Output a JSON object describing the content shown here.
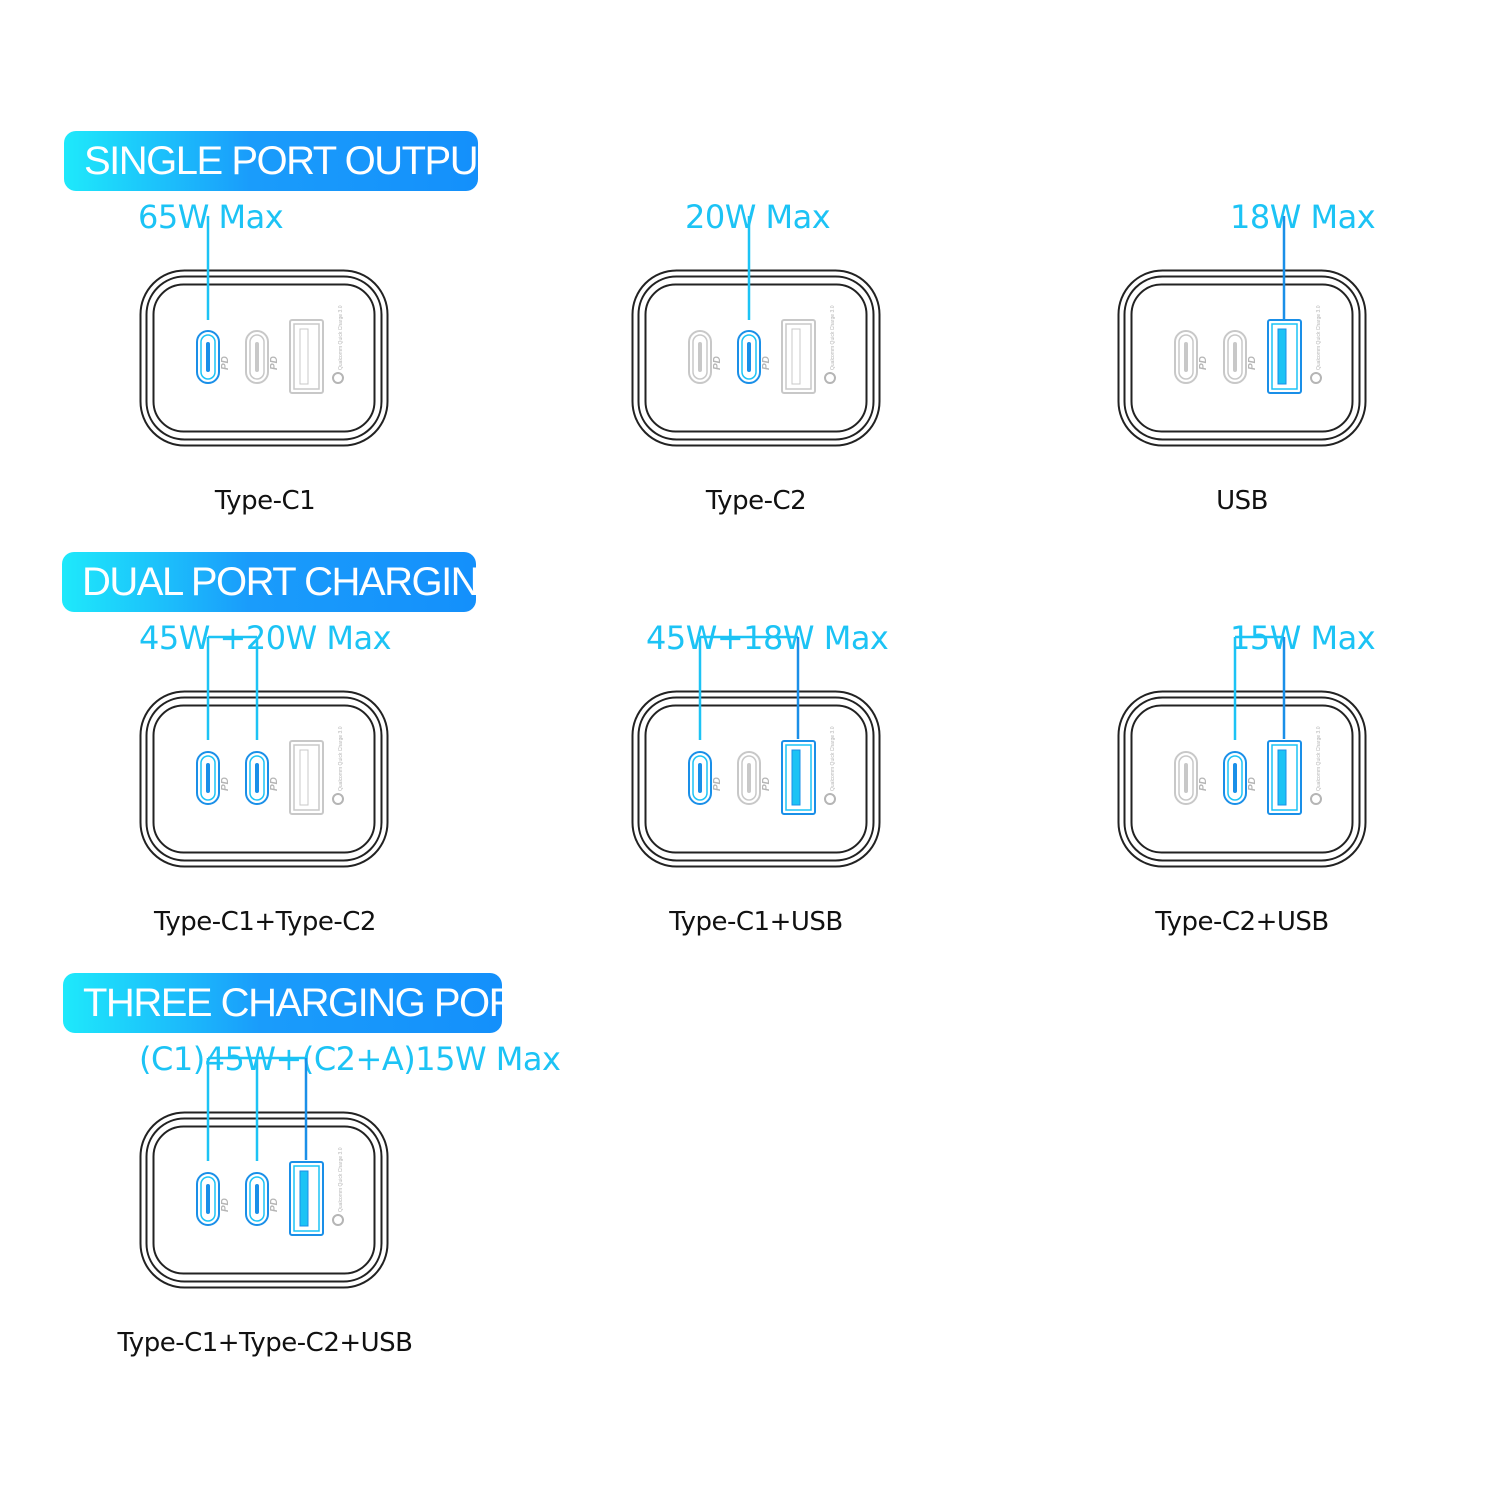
{
  "colors": {
    "accent_cyan": "#1cc3f5",
    "accent_blue": "#1a8fe8",
    "outline": "#222222",
    "inactive_port": "#c8c8c8"
  },
  "sections": [
    {
      "header": "SINGLE PORT OUTPUT",
      "items": [
        {
          "watt": "65W Max",
          "label": "Type-C1",
          "active": [
            "C1"
          ]
        },
        {
          "watt": "20W Max",
          "label": "Type-C2",
          "active": [
            "C2"
          ]
        },
        {
          "watt": "18W Max",
          "label": "USB",
          "active": [
            "A"
          ]
        }
      ]
    },
    {
      "header": "DUAL PORT CHARGING",
      "items": [
        {
          "watt": "45W +20W Max",
          "label": "Type-C1+Type-C2",
          "active": [
            "C1",
            "C2"
          ]
        },
        {
          "watt": "45W+18W Max",
          "label": "Type-C1+USB",
          "active": [
            "C1",
            "A"
          ]
        },
        {
          "watt": "15W Max",
          "label": "Type-C2+USB",
          "active": [
            "C2",
            "A"
          ]
        }
      ]
    },
    {
      "header": "THREE CHARGING PORTS",
      "items": [
        {
          "watt": "(C1)45W+(C2+A)15W Max",
          "label": "Type-C1+Type-C2+USB",
          "active": [
            "C1",
            "C2",
            "A"
          ]
        }
      ]
    }
  ],
  "port_marks": {
    "pd": "PD",
    "qc": "Qualcomm Quick Charge 3.0"
  }
}
